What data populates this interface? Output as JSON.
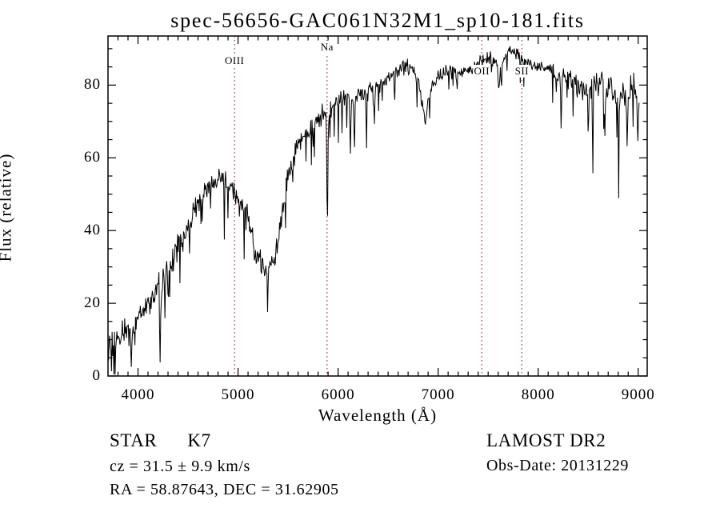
{
  "title": "spec-56656-GAC061N32M1_sp10-181.fits",
  "chart_data": {
    "type": "line",
    "title": "spec-56656-GAC061N32M1_sp10-181.fits",
    "xlabel": "Wavelength (Å)",
    "ylabel": "Flux (relative)",
    "xlim": [
      3700,
      9090
    ],
    "ylim": [
      0,
      93.5
    ],
    "x_ticks": [
      4000,
      5000,
      6000,
      7000,
      8000,
      9000
    ],
    "y_ticks": [
      0,
      20,
      40,
      60,
      80
    ],
    "x_minor_step": 100,
    "y_minor_step": 5,
    "grid": false,
    "line_color": "#000000",
    "marker_line_color": "#a04343",
    "line_markers": [
      {
        "label": "OIII",
        "wavelength": 4965,
        "label_y": 68
      },
      {
        "label": "Na",
        "wavelength": 5890,
        "label_y": 51
      },
      {
        "label": "OII",
        "wavelength": 7437,
        "label_y": 81
      },
      {
        "label": "SII",
        "wavelength": 7837,
        "label_y": 81
      }
    ],
    "series": [
      {
        "name": "spectrum",
        "anchors": [
          [
            3705,
            5
          ],
          [
            3730,
            7
          ],
          [
            3760,
            8
          ],
          [
            3800,
            10
          ],
          [
            3850,
            12
          ],
          [
            3900,
            13
          ],
          [
            3935,
            9
          ],
          [
            3965,
            12
          ],
          [
            4000,
            16
          ],
          [
            4050,
            19
          ],
          [
            4100,
            21
          ],
          [
            4150,
            22
          ],
          [
            4200,
            24
          ],
          [
            4250,
            26
          ],
          [
            4300,
            28
          ],
          [
            4350,
            32
          ],
          [
            4400,
            35
          ],
          [
            4450,
            38
          ],
          [
            4500,
            41
          ],
          [
            4550,
            44
          ],
          [
            4600,
            47
          ],
          [
            4650,
            50
          ],
          [
            4700,
            52
          ],
          [
            4750,
            53.5
          ],
          [
            4800,
            55
          ],
          [
            4850,
            54
          ],
          [
            4900,
            53
          ],
          [
            4950,
            52
          ],
          [
            5000,
            49
          ],
          [
            5050,
            46
          ],
          [
            5100,
            43
          ],
          [
            5150,
            38
          ],
          [
            5200,
            33
          ],
          [
            5250,
            30
          ],
          [
            5300,
            29
          ],
          [
            5350,
            31
          ],
          [
            5400,
            36
          ],
          [
            5450,
            46
          ],
          [
            5500,
            55
          ],
          [
            5550,
            60
          ],
          [
            5600,
            63
          ],
          [
            5650,
            65
          ],
          [
            5700,
            67
          ],
          [
            5750,
            69
          ],
          [
            5800,
            71
          ],
          [
            5850,
            72
          ],
          [
            5900,
            73
          ],
          [
            5950,
            74
          ],
          [
            6000,
            75
          ],
          [
            6050,
            76
          ],
          [
            6100,
            77
          ],
          [
            6150,
            76
          ],
          [
            6200,
            77
          ],
          [
            6250,
            78
          ],
          [
            6300,
            78
          ],
          [
            6350,
            79
          ],
          [
            6400,
            80
          ],
          [
            6450,
            81
          ],
          [
            6500,
            82
          ],
          [
            6550,
            83
          ],
          [
            6600,
            84
          ],
          [
            6650,
            85
          ],
          [
            6700,
            85
          ],
          [
            6750,
            84
          ],
          [
            6800,
            81
          ],
          [
            6840,
            75
          ],
          [
            6870,
            71
          ],
          [
            6900,
            76
          ],
          [
            6950,
            80
          ],
          [
            7000,
            82
          ],
          [
            7050,
            83
          ],
          [
            7100,
            84
          ],
          [
            7150,
            85
          ],
          [
            7200,
            84
          ],
          [
            7250,
            83
          ],
          [
            7300,
            84
          ],
          [
            7350,
            85
          ],
          [
            7400,
            86
          ],
          [
            7450,
            87
          ],
          [
            7500,
            88
          ],
          [
            7550,
            87
          ],
          [
            7600,
            85
          ],
          [
            7650,
            87
          ],
          [
            7700,
            89
          ],
          [
            7750,
            90
          ],
          [
            7800,
            88
          ],
          [
            7850,
            87
          ],
          [
            7900,
            86
          ],
          [
            7950,
            85
          ],
          [
            8000,
            85
          ],
          [
            8050,
            84
          ],
          [
            8100,
            85
          ],
          [
            8150,
            84
          ],
          [
            8200,
            82
          ],
          [
            8250,
            83
          ],
          [
            8300,
            82
          ],
          [
            8350,
            81
          ],
          [
            8400,
            80
          ],
          [
            8450,
            79
          ],
          [
            8500,
            79
          ],
          [
            8550,
            80
          ],
          [
            8600,
            81
          ],
          [
            8650,
            80
          ],
          [
            8700,
            79
          ],
          [
            8750,
            78
          ],
          [
            8800,
            77
          ],
          [
            8850,
            78
          ],
          [
            8900,
            76
          ],
          [
            8950,
            82
          ],
          [
            9000,
            73
          ],
          [
            9010,
            72
          ]
        ]
      }
    ],
    "absorption_features": [
      [
        3933,
        6,
        14
      ],
      [
        4226,
        8,
        10
      ],
      [
        4304,
        5,
        14
      ],
      [
        4863,
        5,
        10
      ],
      [
        5170,
        4,
        12
      ],
      [
        5893,
        31,
        12
      ],
      [
        6122,
        17,
        10
      ],
      [
        6163,
        13,
        10
      ],
      [
        6283,
        16,
        9
      ],
      [
        6362,
        12,
        9
      ],
      [
        6563,
        5,
        9
      ],
      [
        7190,
        7,
        10
      ],
      [
        7608,
        8,
        13
      ],
      [
        7632,
        6,
        10
      ],
      [
        8230,
        16,
        10
      ],
      [
        8350,
        9,
        9
      ],
      [
        8500,
        14,
        10
      ],
      [
        8545,
        16,
        10
      ],
      [
        8665,
        15,
        10
      ],
      [
        8805,
        14,
        10
      ],
      [
        8890,
        16,
        10
      ],
      [
        8995,
        11,
        9
      ]
    ],
    "noise_regions": [
      [
        3700,
        4000,
        6.5
      ],
      [
        4000,
        4450,
        5
      ],
      [
        4450,
        5000,
        4
      ],
      [
        5000,
        5500,
        4.5
      ],
      [
        5500,
        6050,
        3.8
      ],
      [
        6050,
        6550,
        3
      ],
      [
        6550,
        8300,
        2.4
      ],
      [
        8300,
        9100,
        4.5
      ]
    ]
  },
  "footer": {
    "class_label": "STAR",
    "subclass": "K7",
    "cz_line": "cz = 31.5 ± 9.9 km/s",
    "radec_line": "RA =  58.87643, DEC =  31.62905",
    "survey": "LAMOST DR2",
    "obsdate_line": "Obs-Date: 20131229"
  }
}
